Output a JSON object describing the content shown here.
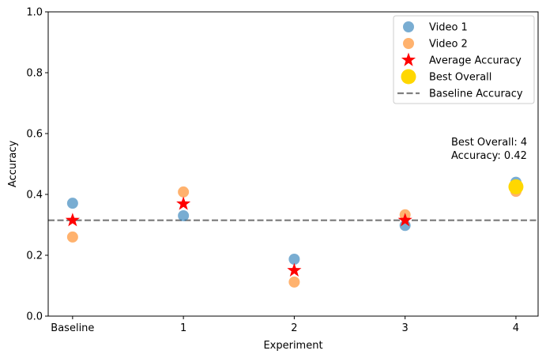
{
  "chart_data": {
    "type": "scatter",
    "xlabel": "Experiment",
    "ylabel": "Accuracy",
    "categories": [
      "Baseline",
      "1",
      "2",
      "3",
      "4"
    ],
    "x": [
      0,
      1,
      2,
      3,
      4
    ],
    "xlim": [
      -0.22,
      4.2
    ],
    "ylim": [
      0.0,
      1.0
    ],
    "yticks": [
      0.0,
      0.2,
      0.4,
      0.6,
      0.8,
      1.0
    ],
    "ytick_labels": [
      "0.0",
      "0.2",
      "0.4",
      "0.6",
      "0.8",
      "1.0"
    ],
    "grid": false,
    "legend_position": "top-right",
    "series": [
      {
        "name": "Video 1",
        "marker": "circle",
        "color": "#1f77b4",
        "values": [
          0.371,
          0.33,
          0.187,
          0.298,
          0.44
        ]
      },
      {
        "name": "Video 2",
        "marker": "circle",
        "color": "#ff7f0e",
        "values": [
          0.26,
          0.408,
          0.112,
          0.333,
          0.41
        ]
      },
      {
        "name": "Average Accuracy",
        "marker": "star",
        "color": "#ff0000",
        "values": [
          0.315,
          0.369,
          0.15,
          0.315,
          0.425
        ]
      }
    ],
    "best_overall": {
      "name": "Best Overall",
      "marker": "circle",
      "color": "#ffd700",
      "x": 4,
      "y": 0.425
    },
    "baseline": {
      "name": "Baseline Accuracy",
      "style": "dashed",
      "color": "#808080",
      "y": 0.315
    },
    "annotation": {
      "line1": "Best Overall: 4",
      "line2": "Accuracy: 0.42",
      "anchor_x": 4,
      "anchor_y": 0.55
    }
  }
}
